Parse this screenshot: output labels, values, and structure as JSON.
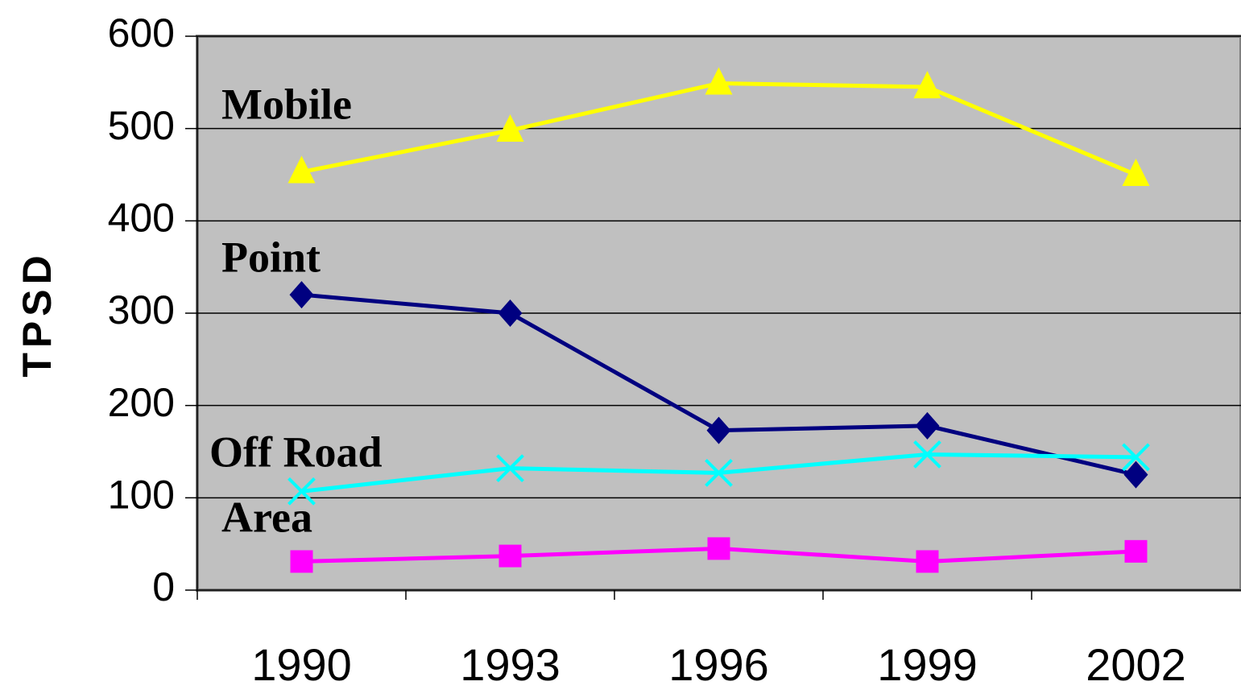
{
  "chart_data": {
    "type": "line",
    "y_label": "TPSD",
    "categories": [
      "1990",
      "1993",
      "1996",
      "1999",
      "2002"
    ],
    "series": [
      {
        "name": "Mobile",
        "color": "#ffff00",
        "marker": "triangle",
        "values": [
          453,
          498,
          549,
          545,
          450
        ]
      },
      {
        "name": "Point",
        "color": "#000080",
        "marker": "diamond",
        "values": [
          320,
          300,
          173,
          178,
          125
        ]
      },
      {
        "name": "Off Road",
        "color": "#00ffff",
        "marker": "x",
        "values": [
          107,
          132,
          127,
          147,
          144
        ]
      },
      {
        "name": "Area",
        "color": "#ff00ff",
        "marker": "square",
        "values": [
          31,
          37,
          45,
          31,
          42
        ]
      }
    ],
    "ylim": [
      0,
      600
    ],
    "yticks": [
      0,
      100,
      200,
      300,
      400,
      500,
      600
    ],
    "grid": true
  }
}
